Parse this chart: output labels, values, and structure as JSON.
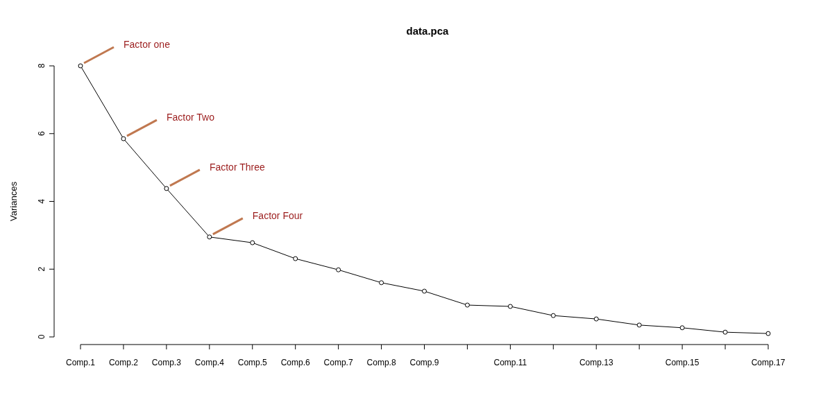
{
  "chart_data": {
    "type": "line",
    "title": "data.pca",
    "ylabel": "Variances",
    "categories": [
      "Comp.1",
      "Comp.2",
      "Comp.3",
      "Comp.4",
      "Comp.5",
      "Comp.6",
      "Comp.7",
      "Comp.8",
      "Comp.9",
      null,
      "Comp.11",
      null,
      "Comp.13",
      null,
      "Comp.15",
      null,
      "Comp.17"
    ],
    "series": [
      {
        "color": "#000000",
        "values": [
          8.0,
          5.85,
          4.38,
          2.95,
          2.78,
          2.31,
          1.98,
          1.6,
          1.35,
          0.94,
          0.9,
          0.63,
          0.53,
          0.35,
          0.27,
          0.14,
          0.1
        ]
      }
    ],
    "ylim": [
      0,
      8
    ],
    "yticks": [
      0,
      2,
      4,
      6,
      8
    ],
    "marker": "circle",
    "annotations": [
      {
        "text": "Factor one",
        "x": "Comp.1",
        "y": 8.0
      },
      {
        "text": "Factor Two",
        "x": "Comp.2",
        "y": 5.85
      },
      {
        "text": "Factor Three",
        "x": "Comp.3",
        "y": 4.38
      },
      {
        "text": "Factor Four",
        "x": "Comp.4",
        "y": 2.95
      }
    ]
  }
}
